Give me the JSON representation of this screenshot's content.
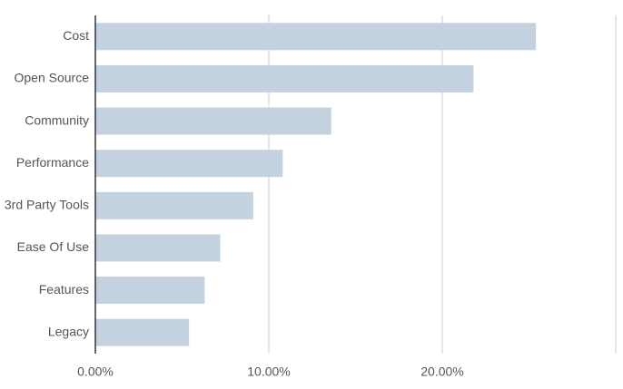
{
  "chart_data": {
    "type": "bar",
    "orientation": "horizontal",
    "categories": [
      "Cost",
      "Open Source",
      "Community",
      "Performance",
      "3rd Party Tools",
      "Ease Of Use",
      "Features",
      "Legacy"
    ],
    "values": [
      25.4,
      21.8,
      13.6,
      10.8,
      9.1,
      7.2,
      6.3,
      5.4
    ],
    "color": "#c4d2df",
    "xlim": [
      0,
      30
    ],
    "xticks": [
      {
        "value": 0,
        "label": "0.00%"
      },
      {
        "value": 10,
        "label": "10.00%"
      },
      {
        "value": 20,
        "label": "20.00%"
      }
    ],
    "grid": true
  }
}
